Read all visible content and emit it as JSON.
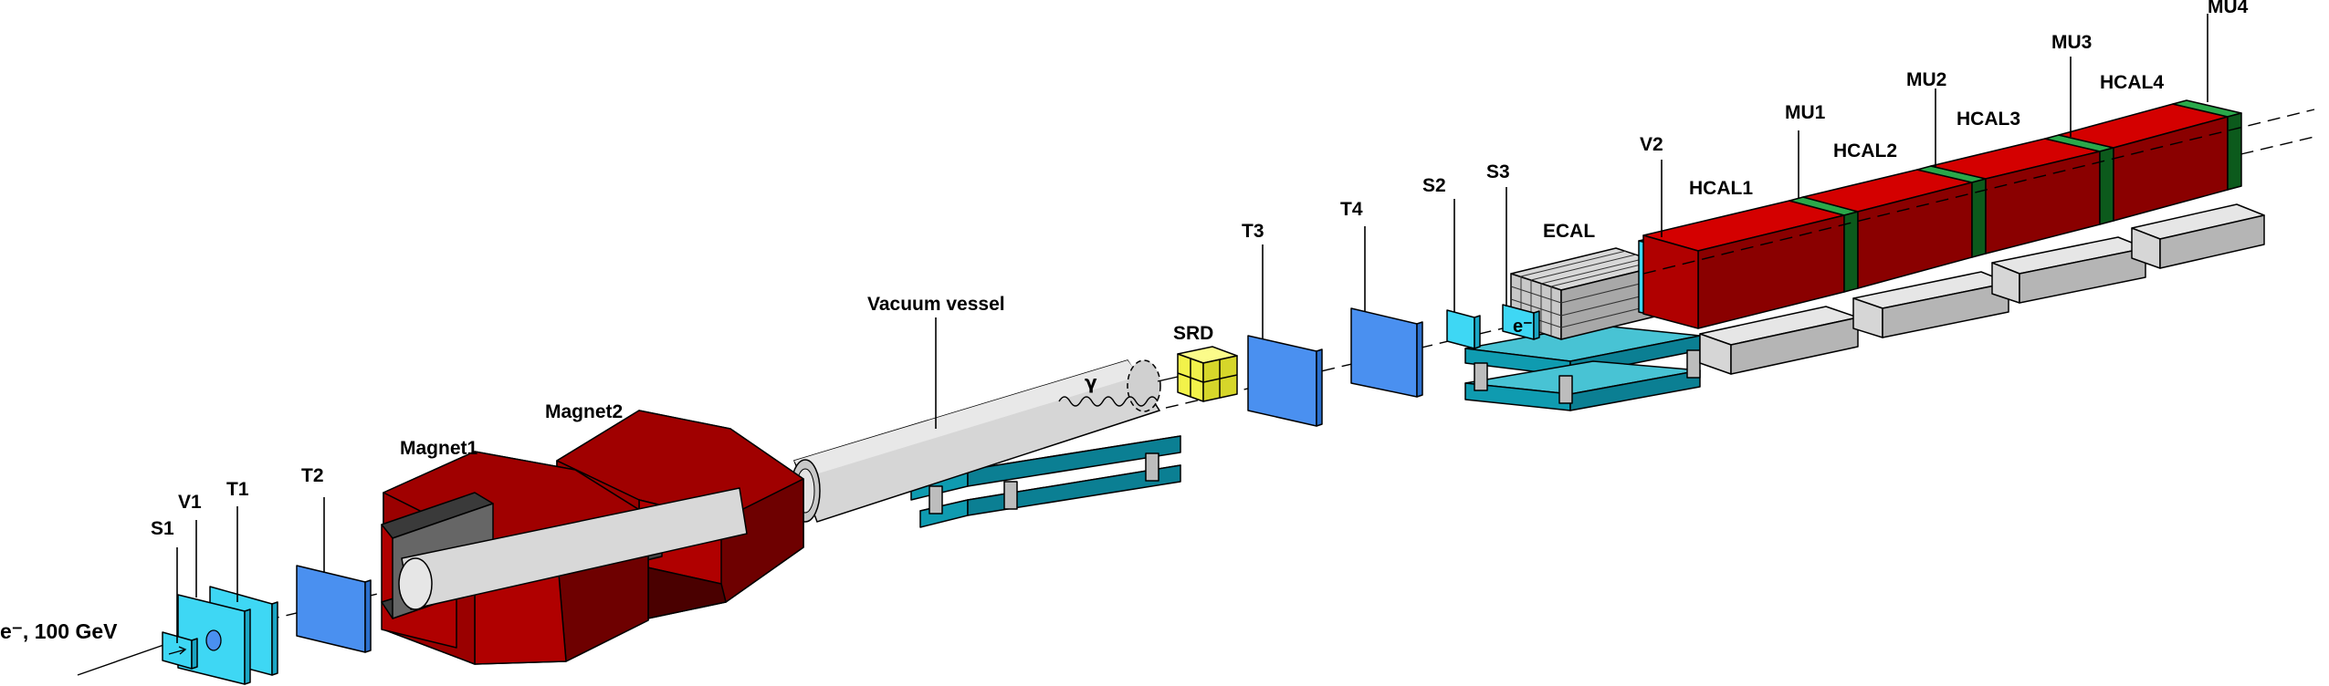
{
  "beam": {
    "label": "e⁻, 100 GeV"
  },
  "detectors": {
    "S1": "S1",
    "V1": "V1",
    "T1": "T1",
    "T2": "T2",
    "Magnet1": "Magnet1",
    "Magnet2": "Magnet2",
    "vacuum": "Vacuum vessel",
    "SRD": "SRD",
    "T3": "T3",
    "T4": "T4",
    "S2": "S2",
    "S3": "S3",
    "ECAL": "ECAL",
    "V2": "V2",
    "HCAL1": "HCAL1",
    "HCAL2": "HCAL2",
    "HCAL3": "HCAL3",
    "HCAL4": "HCAL4",
    "MU1": "MU1",
    "MU2": "MU2",
    "MU3": "MU3",
    "MU4": "MU4"
  },
  "particles": {
    "gamma": "γ",
    "electron": "e⁻"
  },
  "colors": {
    "counter": "#3ed7f4",
    "tracker": "#4a90f0",
    "magnet_red": "#b00000",
    "magnet_dark": "#8a0000",
    "magnet_shadow": "#4a0000",
    "srd": "#f2f24a",
    "table": "#0f9bb0",
    "hcal_green": "#0c5a1c",
    "support_gray": "#c8c8c8"
  }
}
